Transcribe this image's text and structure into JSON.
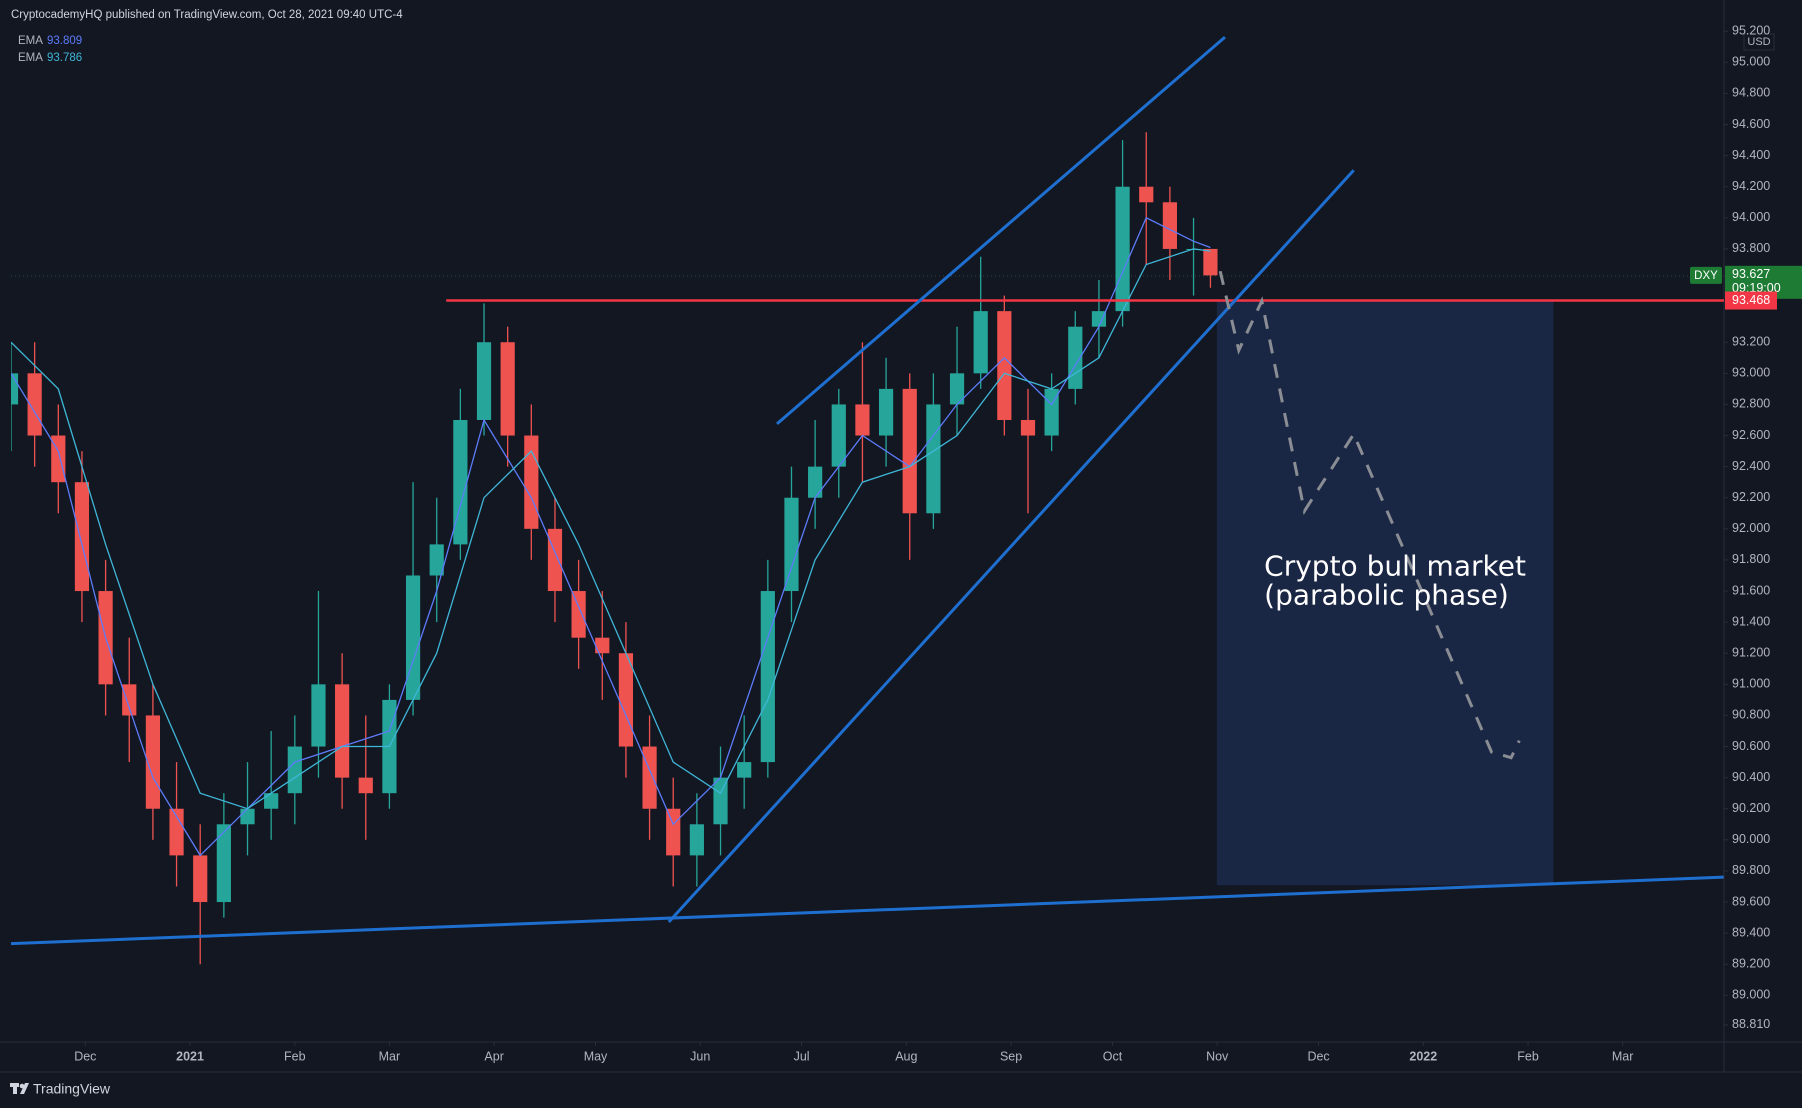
{
  "chart_data": {
    "type": "candlestick",
    "header": "CryptocademyHQ published on TradingView.com, Oct 28, 2021 09:40 UTC-4",
    "brand": "TradingView",
    "currency": "USD",
    "up_color": "#26a69a",
    "down_color": "#ef5350",
    "x": [
      8,
      15,
      22,
      29,
      36,
      43,
      50,
      57,
      64,
      71,
      78,
      85,
      92,
      99,
      106,
      113,
      120,
      127,
      134,
      141,
      148,
      155,
      162,
      169,
      176,
      183,
      190,
      197,
      204,
      211,
      218,
      225,
      232,
      239,
      246,
      253,
      260,
      267,
      274,
      281,
      288,
      295,
      302,
      309,
      316,
      323,
      330,
      337,
      344,
      351,
      358,
      363
    ],
    "open": [
      92.8,
      93.0,
      92.6,
      92.3,
      91.6,
      91.0,
      90.8,
      90.2,
      89.9,
      89.6,
      90.1,
      90.2,
      90.3,
      90.6,
      91.0,
      90.4,
      90.3,
      90.9,
      91.7,
      91.9,
      92.7,
      93.2,
      92.6,
      92.0,
      91.6,
      91.3,
      91.2,
      90.6,
      90.2,
      89.9,
      90.1,
      90.4,
      90.5,
      91.6,
      92.2,
      92.4,
      92.8,
      92.6,
      92.9,
      92.1,
      92.8,
      93.0,
      93.4,
      92.7,
      92.6,
      92.9,
      93.3,
      93.4,
      94.2,
      94.1,
      93.8,
      93.8
    ],
    "high": [
      93.2,
      93.2,
      92.8,
      92.5,
      91.8,
      91.3,
      91.0,
      90.5,
      90.1,
      90.3,
      90.5,
      90.7,
      90.8,
      91.6,
      91.2,
      90.8,
      91.0,
      92.3,
      92.2,
      92.9,
      93.45,
      93.3,
      92.8,
      92.2,
      91.8,
      91.6,
      91.4,
      90.8,
      90.4,
      90.3,
      90.6,
      90.8,
      91.8,
      92.4,
      92.7,
      92.9,
      93.2,
      93.1,
      93.0,
      93.0,
      93.3,
      93.75,
      93.5,
      92.9,
      93.0,
      93.4,
      93.6,
      94.5,
      94.55,
      94.2,
      94.0,
      93.8
    ],
    "low": [
      92.5,
      92.4,
      92.1,
      91.4,
      90.8,
      90.5,
      90.0,
      89.7,
      89.2,
      89.5,
      89.9,
      90.0,
      90.1,
      90.4,
      90.2,
      90.0,
      90.2,
      90.8,
      91.4,
      91.8,
      92.6,
      92.4,
      91.8,
      91.4,
      91.1,
      90.9,
      90.4,
      90.0,
      89.7,
      89.7,
      89.9,
      90.2,
      90.4,
      91.4,
      92.0,
      92.2,
      92.3,
      92.4,
      91.8,
      92.0,
      92.6,
      92.9,
      92.6,
      92.1,
      92.5,
      92.8,
      93.1,
      93.3,
      93.7,
      93.6,
      93.5,
      93.55
    ],
    "close": [
      93.0,
      92.6,
      92.3,
      91.6,
      91.0,
      90.8,
      90.2,
      89.9,
      89.6,
      90.1,
      90.2,
      90.3,
      90.6,
      91.0,
      90.4,
      90.3,
      90.9,
      91.7,
      91.9,
      92.7,
      93.2,
      92.6,
      92.0,
      91.6,
      91.3,
      91.2,
      90.6,
      90.2,
      89.9,
      90.1,
      90.4,
      90.5,
      91.6,
      92.2,
      92.4,
      92.8,
      92.6,
      92.9,
      92.1,
      92.8,
      93.0,
      93.4,
      92.7,
      92.6,
      92.9,
      93.3,
      93.4,
      94.2,
      94.1,
      93.8,
      93.8,
      93.63
    ],
    "emas": [
      {
        "name": "EMA",
        "value": 93.809,
        "color": "#5c7cfa",
        "x": [
          8,
          22,
          36,
          50,
          64,
          78,
          92,
          106,
          120,
          134,
          148,
          162,
          176,
          190,
          204,
          218,
          232,
          246,
          260,
          274,
          288,
          302,
          316,
          330,
          344,
          358,
          363
        ],
        "values": [
          93.0,
          92.5,
          91.3,
          90.4,
          89.9,
          90.2,
          90.5,
          90.6,
          90.7,
          91.6,
          92.7,
          92.2,
          91.5,
          90.8,
          90.1,
          90.4,
          91.3,
          92.2,
          92.6,
          92.4,
          92.8,
          93.1,
          92.8,
          93.3,
          94.0,
          93.85,
          93.809
        ]
      },
      {
        "name": "EMA",
        "value": 93.786,
        "color": "#3fb6d8",
        "x": [
          8,
          22,
          36,
          50,
          64,
          78,
          92,
          106,
          120,
          134,
          148,
          162,
          176,
          190,
          204,
          218,
          232,
          246,
          260,
          274,
          288,
          302,
          316,
          330,
          344,
          358,
          363
        ],
        "values": [
          93.2,
          92.9,
          91.9,
          91.0,
          90.3,
          90.2,
          90.4,
          90.6,
          90.6,
          91.2,
          92.2,
          92.5,
          91.9,
          91.2,
          90.5,
          90.3,
          90.9,
          91.8,
          92.3,
          92.4,
          92.6,
          93.0,
          92.9,
          93.1,
          93.7,
          93.8,
          93.786
        ]
      }
    ],
    "last_price": {
      "symbol": "DXY",
      "value": 93.627,
      "time": "09:19:00",
      "color": "#1e7b34"
    },
    "level": {
      "value": 93.468,
      "start": 136.8,
      "color": "#f23645"
    },
    "trendline_color": "#1e6fd0",
    "trendlines": [
      {
        "x": [
          234.7,
          367.3
        ],
        "y": [
          92.675,
          95.162
        ]
      },
      {
        "x": [
          202.7,
          405.4
        ],
        "y": [
          89.472,
          94.306
        ]
      },
      {
        "x": [
          7.6,
          514.9
        ],
        "y": [
          89.332,
          89.76
        ]
      }
    ],
    "zone": {
      "x": [
        364.9,
        464.5
      ],
      "y": [
        89.708,
        93.468
      ],
      "color": "#1a2744"
    },
    "projection": {
      "x": [
        365.9,
        371.4,
        378.2,
        390.8,
        405.4,
        446.2,
        452.0,
        454.4
      ],
      "y": [
        93.657,
        93.148,
        93.465,
        92.114,
        92.609,
        90.565,
        90.528,
        90.638
      ],
      "color": "#8a8d94"
    },
    "annotation": {
      "lines": [
        "Crypto bull market",
        "(parabolic phase)"
      ],
      "x": 378.9,
      "y": 91.75
    },
    "xlim": [
      8,
      515
    ],
    "ylim": [
      88.7,
      95.24
    ],
    "xticks": [
      {
        "value": 30,
        "label": "Dec"
      },
      {
        "value": 61,
        "label": "2021"
      },
      {
        "value": 92,
        "label": "Feb"
      },
      {
        "value": 120,
        "label": "Mar"
      },
      {
        "value": 151,
        "label": "Apr"
      },
      {
        "value": 181,
        "label": "May"
      },
      {
        "value": 212,
        "label": "Jun"
      },
      {
        "value": 242,
        "label": "Jul"
      },
      {
        "value": 273,
        "label": "Aug"
      },
      {
        "value": 304,
        "label": "Sep"
      },
      {
        "value": 334,
        "label": "Oct"
      },
      {
        "value": 365,
        "label": "Nov"
      },
      {
        "value": 395,
        "label": "Dec"
      },
      {
        "value": 426,
        "label": "2022"
      },
      {
        "value": 457,
        "label": "Feb"
      },
      {
        "value": 485,
        "label": "Mar"
      }
    ],
    "yticks": [
      {
        "value": 95.2,
        "label": "95.200"
      },
      {
        "value": 95.0,
        "label": "95.000"
      },
      {
        "value": 94.8,
        "label": "94.800"
      },
      {
        "value": 94.6,
        "label": "94.600"
      },
      {
        "value": 94.4,
        "label": "94.400"
      },
      {
        "value": 94.2,
        "label": "94.200"
      },
      {
        "value": 94.0,
        "label": "94.000"
      },
      {
        "value": 93.8,
        "label": "93.800"
      },
      {
        "value": 93.2,
        "label": "93.200"
      },
      {
        "value": 93.0,
        "label": "93.000"
      },
      {
        "value": 92.8,
        "label": "92.800"
      },
      {
        "value": 92.6,
        "label": "92.600"
      },
      {
        "value": 92.4,
        "label": "92.400"
      },
      {
        "value": 92.2,
        "label": "92.200"
      },
      {
        "value": 92.0,
        "label": "92.000"
      },
      {
        "value": 91.8,
        "label": "91.800"
      },
      {
        "value": 91.6,
        "label": "91.600"
      },
      {
        "value": 91.4,
        "label": "91.400"
      },
      {
        "value": 91.2,
        "label": "91.200"
      },
      {
        "value": 91.0,
        "label": "91.000"
      },
      {
        "value": 90.8,
        "label": "90.800"
      },
      {
        "value": 90.6,
        "label": "90.600"
      },
      {
        "value": 90.4,
        "label": "90.400"
      },
      {
        "value": 90.2,
        "label": "90.200"
      },
      {
        "value": 90.0,
        "label": "90.000"
      },
      {
        "value": 89.8,
        "label": "89.800"
      },
      {
        "value": 89.6,
        "label": "89.600"
      },
      {
        "value": 89.4,
        "label": "89.400"
      },
      {
        "value": 89.2,
        "label": "89.200"
      },
      {
        "value": 89.0,
        "label": "89.000"
      },
      {
        "value": 88.81,
        "label": "88.810"
      }
    ]
  }
}
